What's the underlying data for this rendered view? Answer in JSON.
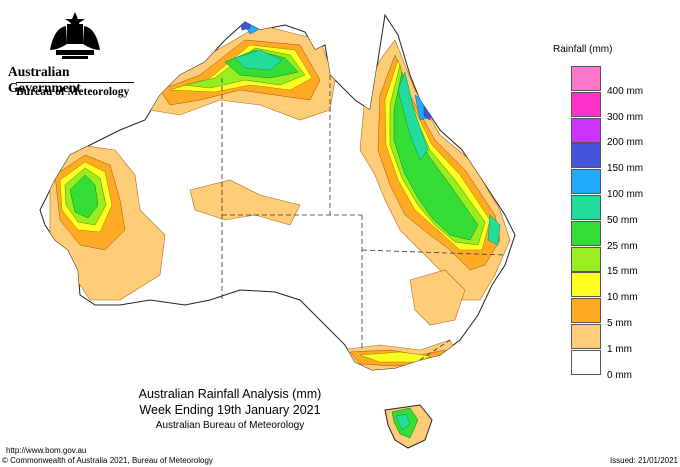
{
  "header": {
    "government": "Australian Government",
    "bureau": "Bureau of Meteorology",
    "crest": "commonwealth-coat-of-arms"
  },
  "legend": {
    "title": "Rainfall (mm)",
    "items": [
      {
        "label": "",
        "color": "#ff77cc"
      },
      {
        "label": "400 mm",
        "color": "#ff33cc"
      },
      {
        "label": "300 mm",
        "color": "#cc33ff"
      },
      {
        "label": "200 mm",
        "color": "#4455dd"
      },
      {
        "label": "150 mm",
        "color": "#22aaff"
      },
      {
        "label": "100 mm",
        "color": "#22dd99"
      },
      {
        "label": "50 mm",
        "color": "#33dd33"
      },
      {
        "label": "25 mm",
        "color": "#99ee22"
      },
      {
        "label": "15 mm",
        "color": "#ffff22"
      },
      {
        "label": "10 mm",
        "color": "#ffaa22"
      },
      {
        "label": "5 mm",
        "color": "#ffcc77"
      },
      {
        "label": "1 mm",
        "color": "#ffffff"
      },
      {
        "label": "0 mm",
        "color": ""
      }
    ]
  },
  "caption": {
    "line1": "Australian Rainfall Analysis (mm)",
    "line2": "Week Ending 19th January 2021",
    "line3": "Australian Bureau of Meteorology"
  },
  "footer": {
    "url": "http://www.bom.gov.au",
    "copyright": "© Commonwealth of Australia 2021, Bureau of Meteorology",
    "issued": "Issued: 21/01/2021"
  }
}
